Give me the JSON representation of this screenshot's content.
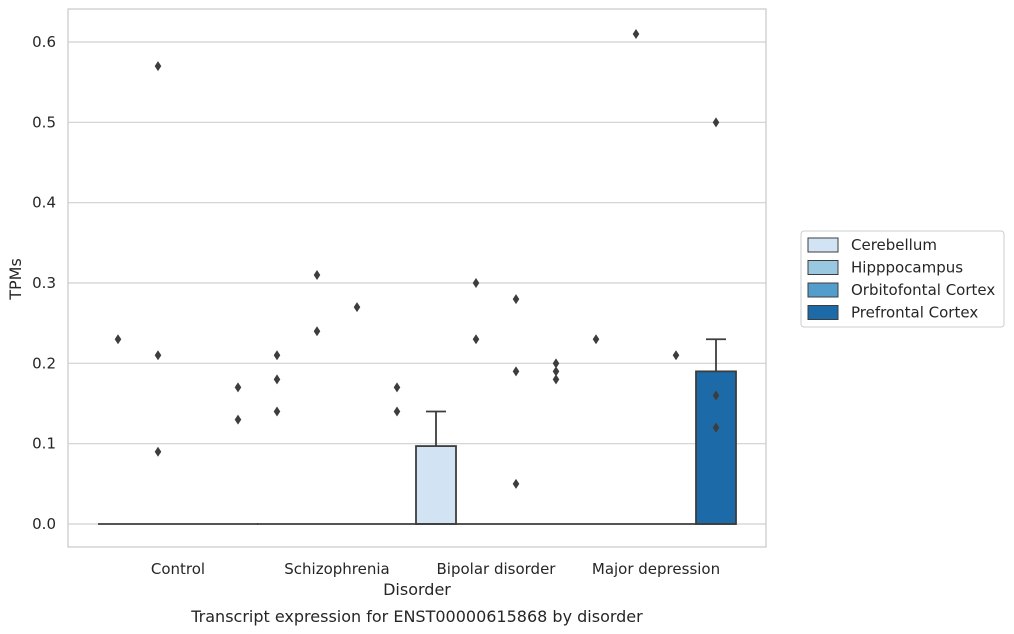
{
  "chart_data": {
    "type": "box",
    "caption": "Transcript expression for ENST00000615868 by disorder",
    "xlabel": "Disorder",
    "ylabel": "TPMs",
    "ylim": [
      -0.03,
      0.64
    ],
    "yticks": [
      "0.0",
      "0.1",
      "0.2",
      "0.3",
      "0.4",
      "0.5",
      "0.6"
    ],
    "ytick_values": [
      0.0,
      0.1,
      0.2,
      0.3,
      0.4,
      0.5,
      0.6
    ],
    "categories": [
      "Control",
      "Schizophrenia",
      "Bipolar disorder",
      "Major depression"
    ],
    "grid": true,
    "legend_position": "right",
    "series": [
      {
        "name": "Cerebellum",
        "color": "#d2e3f3",
        "boxes": [
          {
            "q1": 0,
            "median": 0,
            "q3": 0,
            "whisker_low": 0,
            "whisker_high": 0,
            "outliers": [
              0.23
            ]
          },
          {
            "q1": 0,
            "median": 0,
            "q3": 0,
            "whisker_low": 0,
            "whisker_high": 0,
            "outliers": [
              0.21,
              0.18,
              0.14
            ]
          },
          {
            "q1": 0,
            "median": 0,
            "q3": 0.097,
            "whisker_low": 0,
            "whisker_high": 0.14,
            "outliers": []
          },
          {
            "q1": 0,
            "median": 0,
            "q3": 0,
            "whisker_low": 0,
            "whisker_high": 0,
            "outliers": [
              0.23
            ]
          }
        ]
      },
      {
        "name": "Hipppocampus",
        "color": "#9ac8e0",
        "boxes": [
          {
            "q1": 0,
            "median": 0,
            "q3": 0,
            "whisker_low": 0,
            "whisker_high": 0,
            "outliers": [
              0.57,
              0.21,
              0.09
            ]
          },
          {
            "q1": 0,
            "median": 0,
            "q3": 0,
            "whisker_low": 0,
            "whisker_high": 0,
            "outliers": [
              0.31,
              0.24
            ]
          },
          {
            "q1": 0,
            "median": 0,
            "q3": 0,
            "whisker_low": 0,
            "whisker_high": 0,
            "outliers": [
              0.3,
              0.23
            ]
          },
          {
            "q1": 0,
            "median": 0,
            "q3": 0,
            "whisker_low": 0,
            "whisker_high": 0,
            "outliers": [
              0.61
            ]
          }
        ]
      },
      {
        "name": "Orbitofontal Cortex",
        "color": "#529dcc",
        "boxes": [
          {
            "q1": 0,
            "median": 0,
            "q3": 0,
            "whisker_low": 0,
            "whisker_high": 0,
            "outliers": []
          },
          {
            "q1": 0,
            "median": 0,
            "q3": 0,
            "whisker_low": 0,
            "whisker_high": 0,
            "outliers": [
              0.27
            ]
          },
          {
            "q1": 0,
            "median": 0,
            "q3": 0,
            "whisker_low": 0,
            "whisker_high": 0,
            "outliers": [
              0.28,
              0.19,
              0.05
            ]
          },
          {
            "q1": 0,
            "median": 0,
            "q3": 0,
            "whisker_low": 0,
            "whisker_high": 0,
            "outliers": [
              0.21
            ]
          }
        ]
      },
      {
        "name": "Prefrontal Cortex",
        "color": "#1c6aa8",
        "boxes": [
          {
            "q1": 0,
            "median": 0,
            "q3": 0,
            "whisker_low": 0,
            "whisker_high": 0,
            "outliers": [
              0.17,
              0.13
            ]
          },
          {
            "q1": 0,
            "median": 0,
            "q3": 0,
            "whisker_low": 0,
            "whisker_high": 0,
            "outliers": [
              0.17,
              0.14
            ]
          },
          {
            "q1": 0,
            "median": 0,
            "q3": 0,
            "whisker_low": 0,
            "whisker_high": 0,
            "outliers": [
              0.2,
              0.19,
              0.18
            ]
          },
          {
            "q1": 0,
            "median": 0,
            "q3": 0.19,
            "whisker_low": 0,
            "whisker_high": 0.23,
            "outliers": [
              0.5,
              0.16,
              0.12
            ]
          }
        ]
      }
    ]
  }
}
